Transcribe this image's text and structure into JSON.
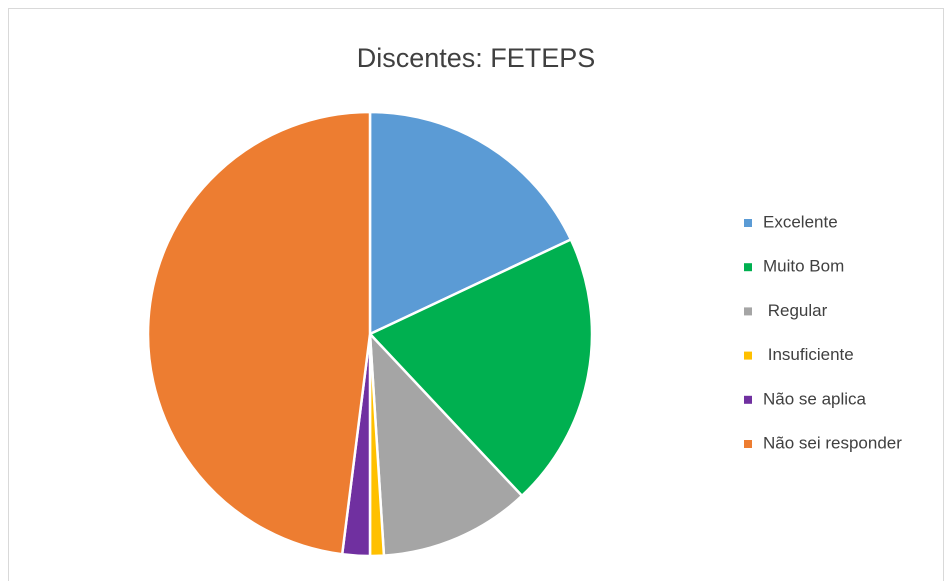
{
  "chart_data": {
    "type": "pie",
    "title": "Discentes: FETEPS",
    "categories": [
      "Excelente",
      "Muito Bom",
      " Regular",
      " Insuficiente",
      "Não se aplica",
      "Não sei responder"
    ],
    "values": [
      18,
      20,
      11,
      1,
      2,
      48
    ],
    "colors": [
      "#5b9bd5",
      "#00b050",
      "#a5a5a5",
      "#ffc000",
      "#7030a0",
      "#ed7d31"
    ],
    "legend": "right"
  }
}
